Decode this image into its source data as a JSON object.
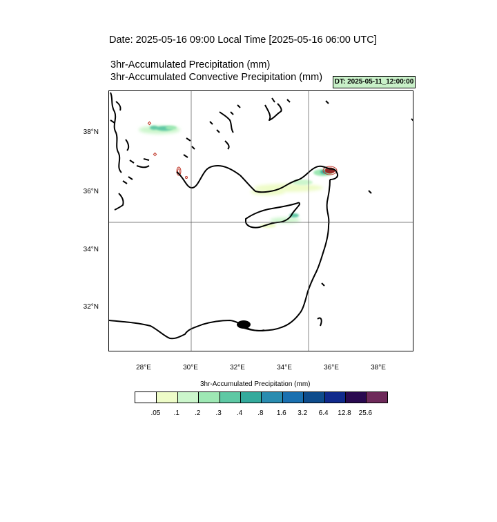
{
  "header": {
    "date_line": "Date: 2025-05-16  09:00 Local Time [2025-05-16  06:00 UTC]",
    "title_precip": "3hr-Accumulated Precipitation   (mm)",
    "title_convective": "3hr-Accumulated Convective Precipitation   (mm)",
    "dt_badge": "DT: 2025-05-11_12:00:00"
  },
  "map": {
    "region": "Eastern Mediterranean",
    "lon_range": [
      26.6,
      39.4
    ],
    "lat_range": [
      30.4,
      39.4
    ],
    "lat_labels": [
      "38°N",
      "36°N",
      "34°N",
      "32°N"
    ],
    "lon_labels": [
      "28°E",
      "30°E",
      "32°E",
      "34°E",
      "36°E",
      "38°E"
    ],
    "gridlines_lon": [
      30,
      35
    ],
    "gridlines_lat": [
      35
    ],
    "coastline_color": "#000000",
    "convective_contour_color": "#c0392b"
  },
  "colorbar": {
    "title": "3hr-Accumulated Precipitation   (mm)",
    "colors": [
      "#ffffff",
      "#eefcc8",
      "#ccf6cc",
      "#9ee8b4",
      "#5ec8a4",
      "#34aa9c",
      "#2a8cb0",
      "#1a70b0",
      "#0e4c8c",
      "#102a8c",
      "#2a0a50",
      "#6e2a5a"
    ],
    "labels": [
      ".05",
      ".1",
      ".2",
      ".3",
      ".4",
      ".8",
      "1.6",
      "3.2",
      "6.4",
      "12.8",
      "25.6"
    ]
  }
}
